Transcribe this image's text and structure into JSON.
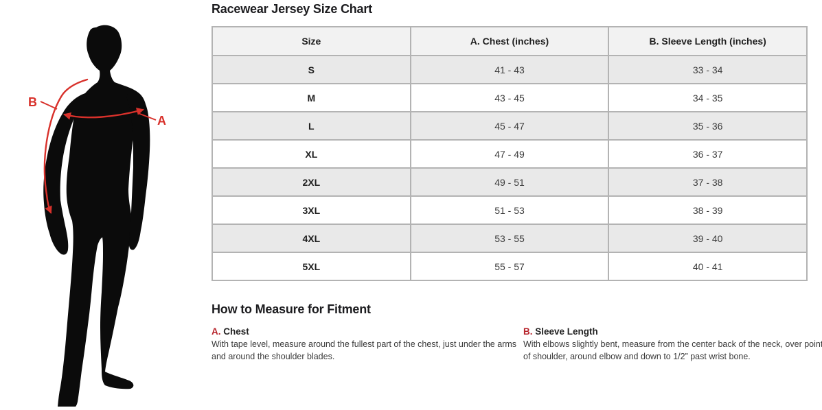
{
  "title": "Racewear Jersey Size Chart",
  "diagram": {
    "label_a": "A",
    "label_b": "B"
  },
  "size_chart": {
    "headers": {
      "size": "Size",
      "chest": "A. Chest (inches)",
      "sleeve": "B. Sleeve Length (inches)"
    },
    "rows": [
      {
        "size": "S",
        "chest": "41 - 43",
        "sleeve": "33 - 34"
      },
      {
        "size": "M",
        "chest": "43 - 45",
        "sleeve": "34 - 35"
      },
      {
        "size": "L",
        "chest": "45 - 47",
        "sleeve": "35 - 36"
      },
      {
        "size": "XL",
        "chest": "47 - 49",
        "sleeve": "36 - 37"
      },
      {
        "size": "2XL",
        "chest": "49 - 51",
        "sleeve": "37 - 38"
      },
      {
        "size": "3XL",
        "chest": "51 - 53",
        "sleeve": "38 - 39"
      },
      {
        "size": "4XL",
        "chest": "53 - 55",
        "sleeve": "39 - 40"
      },
      {
        "size": "5XL",
        "chest": "55 - 57",
        "sleeve": "40 - 41"
      }
    ]
  },
  "measure_guide": {
    "heading": "How to Measure for Fitment",
    "items": [
      {
        "letter": "A.",
        "title": "Chest",
        "description": "With tape level, measure around the fullest part of the chest, just under the arms and around the shoulder blades."
      },
      {
        "letter": "B.",
        "title": "Sleeve Length",
        "description": "With elbows slightly bent, measure from the center back of the neck, over point of shoulder, around elbow and down to 1/2” past wrist bone."
      }
    ]
  },
  "colors": {
    "accent_red": "#b7232b",
    "diagram_red": "#d8312b",
    "silhouette_black": "#0b0b0b",
    "table_border": "#b3b3b3",
    "header_bg": "#f2f2f2",
    "stripe_bg": "#e9e9e9"
  }
}
